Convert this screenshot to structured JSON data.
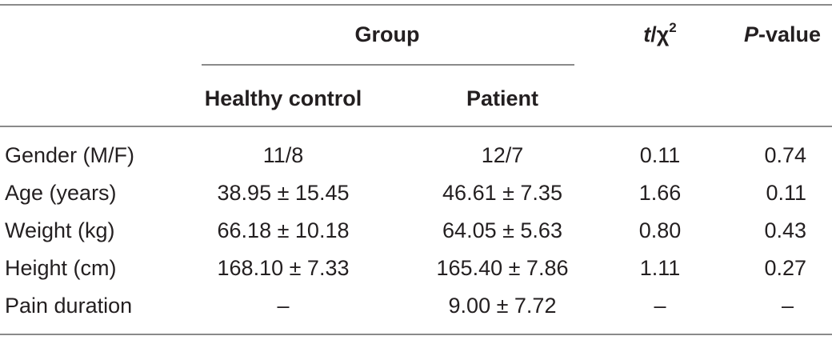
{
  "table": {
    "header": {
      "group": "Group",
      "t_chi_t": "t",
      "t_chi_slash": "/χ",
      "t_chi_sup": "2",
      "p_value_p": "P",
      "p_value_rest": "-value",
      "healthy_control": "Healthy control",
      "patient": "Patient"
    },
    "rows": [
      {
        "label": "Gender (M/F)",
        "healthy": "11/8",
        "patient": "12/7",
        "stat": "0.11",
        "p": "0.74"
      },
      {
        "label": "Age (years)",
        "healthy": "38.95 ± 15.45",
        "patient": "46.61 ± 7.35",
        "stat": "1.66",
        "p": "0.11"
      },
      {
        "label": "Weight (kg)",
        "healthy": "66.18 ± 10.18",
        "patient": "64.05 ± 5.63",
        "stat": "0.80",
        "p": "0.43"
      },
      {
        "label": "Height (cm)",
        "healthy": "168.10 ± 7.33",
        "patient": "165.40 ± 7.86",
        "stat": "1.11",
        "p": "0.27"
      },
      {
        "label": "Pain duration",
        "healthy": "–",
        "patient": "9.00 ± 7.72",
        "stat": "–",
        "p": "–"
      }
    ]
  }
}
